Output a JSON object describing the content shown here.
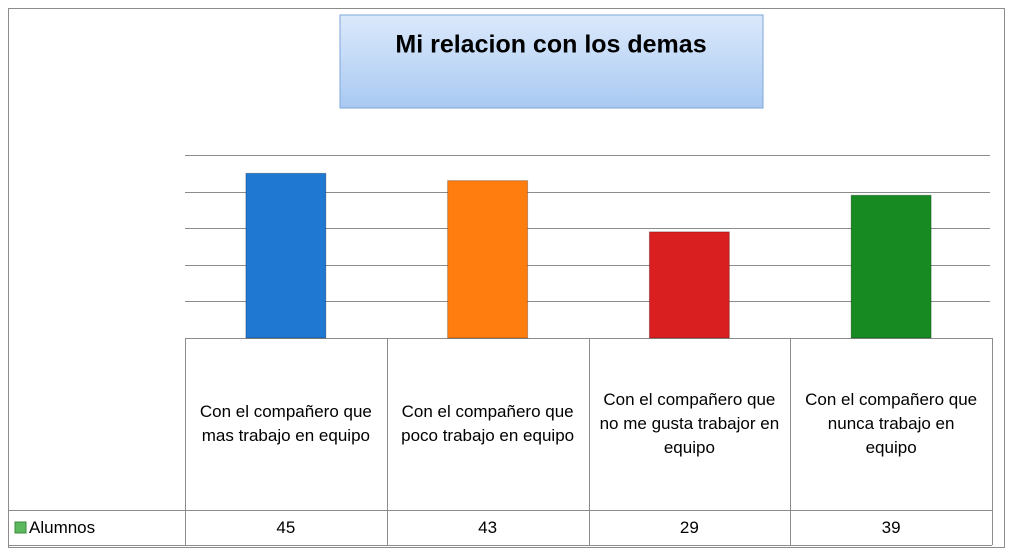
{
  "chart_data": {
    "type": "bar",
    "title": "Mi relacion con los demas",
    "categories": [
      "Con el compañero  que mas trabajo en equipo",
      "Con el compañero que poco trabajo en equipo",
      "Con el compañero que no me gusta trabajor en equipo",
      "Con el compañero que nunca trabajo en equipo"
    ],
    "series": [
      {
        "name": "Alumnos",
        "color": "#5cb85c",
        "point_colors": [
          "#1f78d1",
          "#ff7d0f",
          "#d91f1f",
          "#178a22"
        ],
        "values": [
          45,
          43,
          29,
          39
        ]
      }
    ],
    "ylim": [
      0,
      50
    ],
    "yticks": [
      0,
      10,
      20,
      30,
      40,
      50
    ],
    "grid": true
  }
}
